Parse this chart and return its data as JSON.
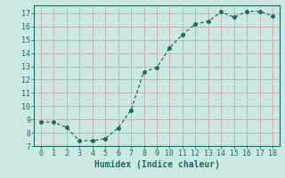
{
  "x": [
    0,
    1,
    2,
    3,
    4,
    5,
    6,
    7,
    8,
    9,
    10,
    11,
    12,
    13,
    14,
    15,
    16,
    17,
    18
  ],
  "y": [
    8.8,
    8.8,
    8.4,
    7.4,
    7.4,
    7.55,
    8.35,
    9.7,
    12.6,
    12.9,
    14.4,
    15.4,
    16.2,
    16.4,
    17.1,
    16.7,
    17.15,
    17.15,
    16.8
  ],
  "line_color": "#1a6b60",
  "marker": "o",
  "marker_size": 2.5,
  "bg_color": "#cce8e4",
  "grid_color_major": "#c8a0a0",
  "grid_color_minor": "#c8a0a0",
  "xlabel": "Humidex (Indice chaleur)",
  "xlim": [
    -0.5,
    18.5
  ],
  "ylim": [
    7,
    17.6
  ],
  "xticks": [
    0,
    1,
    2,
    3,
    4,
    5,
    6,
    7,
    8,
    9,
    10,
    11,
    12,
    13,
    14,
    15,
    16,
    17,
    18
  ],
  "yticks": [
    7,
    8,
    9,
    10,
    11,
    12,
    13,
    14,
    15,
    16,
    17
  ],
  "tick_fontsize": 6,
  "xlabel_fontsize": 7,
  "tick_color": "#1a6b60",
  "label_color": "#1a6b60"
}
